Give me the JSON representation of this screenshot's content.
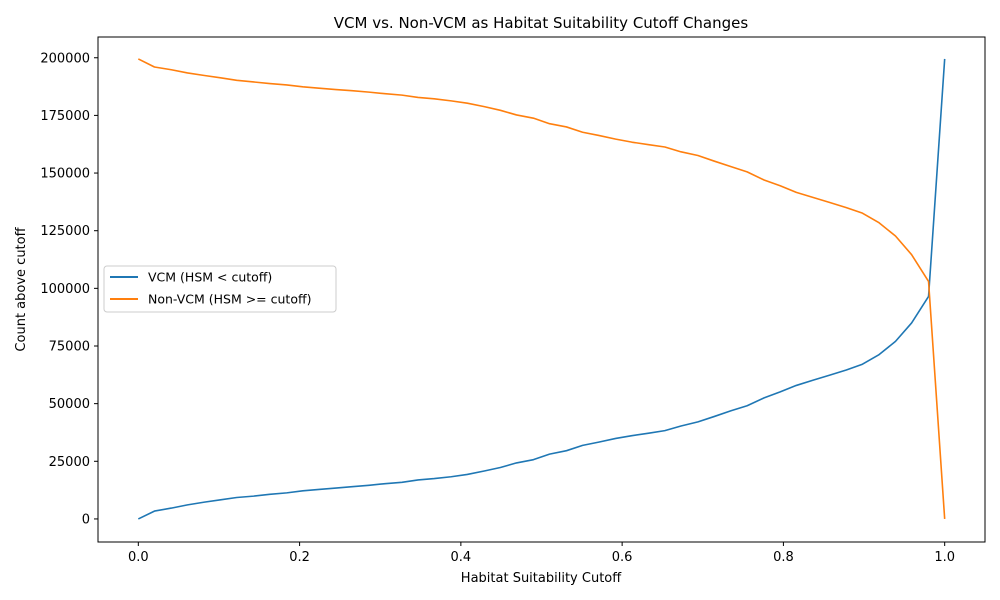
{
  "chart_data": {
    "type": "line",
    "title": "VCM vs. Non-VCM as Habitat Suitability Cutoff Changes",
    "xlabel": "Habitat Suitability Cutoff",
    "ylabel": "Count above cutoff",
    "xlim": [
      -0.05,
      1.05
    ],
    "ylim": [
      -10000,
      209000
    ],
    "xticks": [
      0.0,
      0.2,
      0.4,
      0.6,
      0.8,
      1.0
    ],
    "xtick_labels": [
      "0.0",
      "0.2",
      "0.4",
      "0.6",
      "0.8",
      "1.0"
    ],
    "yticks": [
      0,
      25000,
      50000,
      75000,
      100000,
      125000,
      150000,
      175000,
      200000
    ],
    "ytick_labels": [
      "0",
      "25000",
      "50000",
      "75000",
      "100000",
      "125000",
      "150000",
      "175000",
      "200000"
    ],
    "grid": false,
    "legend_position": "center-left",
    "x": [
      0.0,
      0.02,
      0.041,
      0.061,
      0.082,
      0.102,
      0.122,
      0.143,
      0.163,
      0.184,
      0.204,
      0.224,
      0.245,
      0.265,
      0.286,
      0.306,
      0.327,
      0.347,
      0.367,
      0.388,
      0.408,
      0.429,
      0.449,
      0.469,
      0.49,
      0.51,
      0.531,
      0.551,
      0.571,
      0.592,
      0.612,
      0.633,
      0.653,
      0.673,
      0.694,
      0.714,
      0.735,
      0.755,
      0.776,
      0.796,
      0.816,
      0.837,
      0.857,
      0.878,
      0.898,
      0.918,
      0.939,
      0.959,
      0.98,
      1.0
    ],
    "series": [
      {
        "name": "VCM (HSM < cutoff)",
        "color": "#1f77b4",
        "values": [
          0,
          3400,
          4700,
          6100,
          7300,
          8300,
          9300,
          9900,
          10700,
          11300,
          12200,
          12800,
          13400,
          14000,
          14600,
          15300,
          15900,
          16900,
          17500,
          18300,
          19300,
          20800,
          22300,
          24300,
          25700,
          28100,
          29600,
          31900,
          33300,
          34900,
          36100,
          37200,
          38300,
          40300,
          42100,
          44400,
          46900,
          49100,
          52500,
          55100,
          57900,
          60200,
          62300,
          64600,
          67100,
          71100,
          77000,
          85000,
          96500,
          199500
        ]
      },
      {
        "name": "Non-VCM (HSM >= cutoff)",
        "color": "#ff7f0e",
        "values": [
          199500,
          196000,
          194800,
          193400,
          192300,
          191300,
          190200,
          189500,
          188800,
          188200,
          187400,
          186800,
          186200,
          185700,
          185100,
          184400,
          183800,
          182800,
          182200,
          181300,
          180300,
          178800,
          177200,
          175200,
          173800,
          171400,
          170000,
          167700,
          166300,
          164700,
          163400,
          162300,
          161300,
          159200,
          157600,
          155200,
          152800,
          150500,
          147000,
          144500,
          141600,
          139400,
          137300,
          135000,
          132600,
          128600,
          122700,
          114600,
          103000,
          0
        ]
      }
    ]
  }
}
